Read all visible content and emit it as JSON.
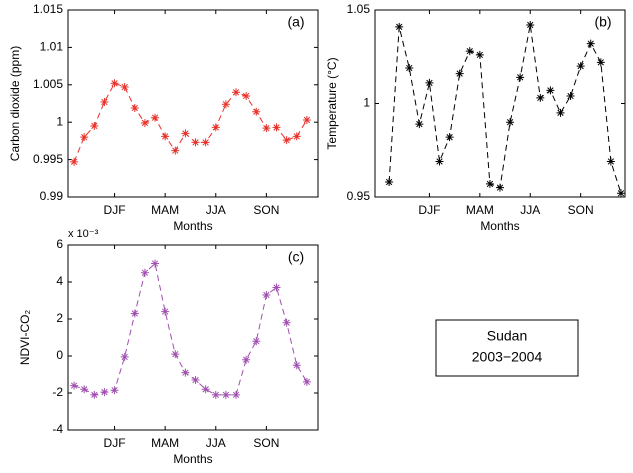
{
  "chart_data": [
    {
      "type": "line",
      "panel_label": "(a)",
      "ylabel": "Carbon dioxide (ppm)",
      "xlabel": "Months",
      "x": [
        1,
        2,
        3,
        4,
        5,
        6,
        7,
        8,
        9,
        10,
        11,
        12,
        13,
        14,
        15,
        16,
        17,
        18,
        19,
        20,
        21,
        22,
        23,
        24
      ],
      "values": [
        0.9947,
        0.998,
        0.9995,
        1.0027,
        1.0052,
        1.0047,
        1.0019,
        0.9999,
        1.0006,
        0.9981,
        0.9962,
        0.9985,
        0.9973,
        0.9973,
        0.9993,
        1.0024,
        1.004,
        1.0035,
        1.0014,
        0.9992,
        0.9993,
        0.9976,
        0.9981,
        1.0003
      ],
      "color": "#e8302a",
      "line_style": "dashed",
      "marker": "asterisk",
      "xlim": [
        0.4,
        25.1
      ],
      "xticks": [
        {
          "value": 5,
          "label": "DJF"
        },
        {
          "value": 10,
          "label": "MAM"
        },
        {
          "value": 15,
          "label": "JJA"
        },
        {
          "value": 20,
          "label": "SON"
        }
      ],
      "ylim": [
        0.99,
        1.015
      ],
      "yticks": [
        0.99,
        0.995,
        1,
        1.005,
        1.01,
        1.015
      ]
    },
    {
      "type": "line",
      "panel_label": "(b)",
      "ylabel": "Temperature (°C)",
      "xlabel": "Months",
      "x": [
        1,
        2,
        3,
        4,
        5,
        6,
        7,
        8,
        9,
        10,
        11,
        12,
        13,
        14,
        15,
        16,
        17,
        18,
        19,
        20,
        21,
        22,
        23,
        24
      ],
      "values": [
        0.958,
        1.041,
        1.019,
        0.989,
        1.011,
        0.969,
        0.982,
        1.016,
        1.028,
        1.026,
        0.957,
        0.955,
        0.99,
        1.014,
        1.042,
        1.003,
        1.007,
        0.995,
        1.004,
        1.02,
        1.032,
        1.022,
        0.969,
        0.952
      ],
      "color": "#000000",
      "line_style": "dashed",
      "marker": "asterisk",
      "xlim": [
        -0.4,
        24.4
      ],
      "xticks": [
        {
          "value": 5,
          "label": "DJF"
        },
        {
          "value": 10,
          "label": "MAM"
        },
        {
          "value": 15,
          "label": "JJA"
        },
        {
          "value": 20,
          "label": "SON"
        }
      ],
      "ylim": [
        0.95,
        1.05
      ],
      "yticks": [
        0.95,
        1,
        1.05
      ]
    },
    {
      "type": "line",
      "panel_label": "(c)",
      "ylabel": "NDVI-CO₂",
      "xlabel": "Months",
      "y_multiplier": "x 10⁻³",
      "x": [
        1,
        2,
        3,
        4,
        5,
        6,
        7,
        8,
        9,
        10,
        11,
        12,
        13,
        14,
        15,
        16,
        17,
        18,
        19,
        20,
        21,
        22,
        23,
        24
      ],
      "values": [
        -1.6,
        -1.8,
        -2.1,
        -1.95,
        -1.85,
        -0.05,
        2.3,
        4.5,
        5.0,
        2.4,
        0.1,
        -0.9,
        -1.3,
        -1.8,
        -2.1,
        -2.1,
        -2.1,
        -0.2,
        0.8,
        3.3,
        3.7,
        1.8,
        -0.5,
        -1.4
      ],
      "color": "#a050b0",
      "line_style": "dashed",
      "marker": "asterisk",
      "xlim": [
        0.4,
        25.1
      ],
      "xticks": [
        {
          "value": 5,
          "label": "DJF"
        },
        {
          "value": 10,
          "label": "MAM"
        },
        {
          "value": 15,
          "label": "JJA"
        },
        {
          "value": 20,
          "label": "SON"
        }
      ],
      "ylim": [
        -4,
        6
      ],
      "yticks": [
        -4,
        -2,
        0,
        2,
        4,
        6
      ]
    }
  ],
  "annotation": {
    "lines": [
      "Sudan",
      "2003−2004"
    ]
  }
}
